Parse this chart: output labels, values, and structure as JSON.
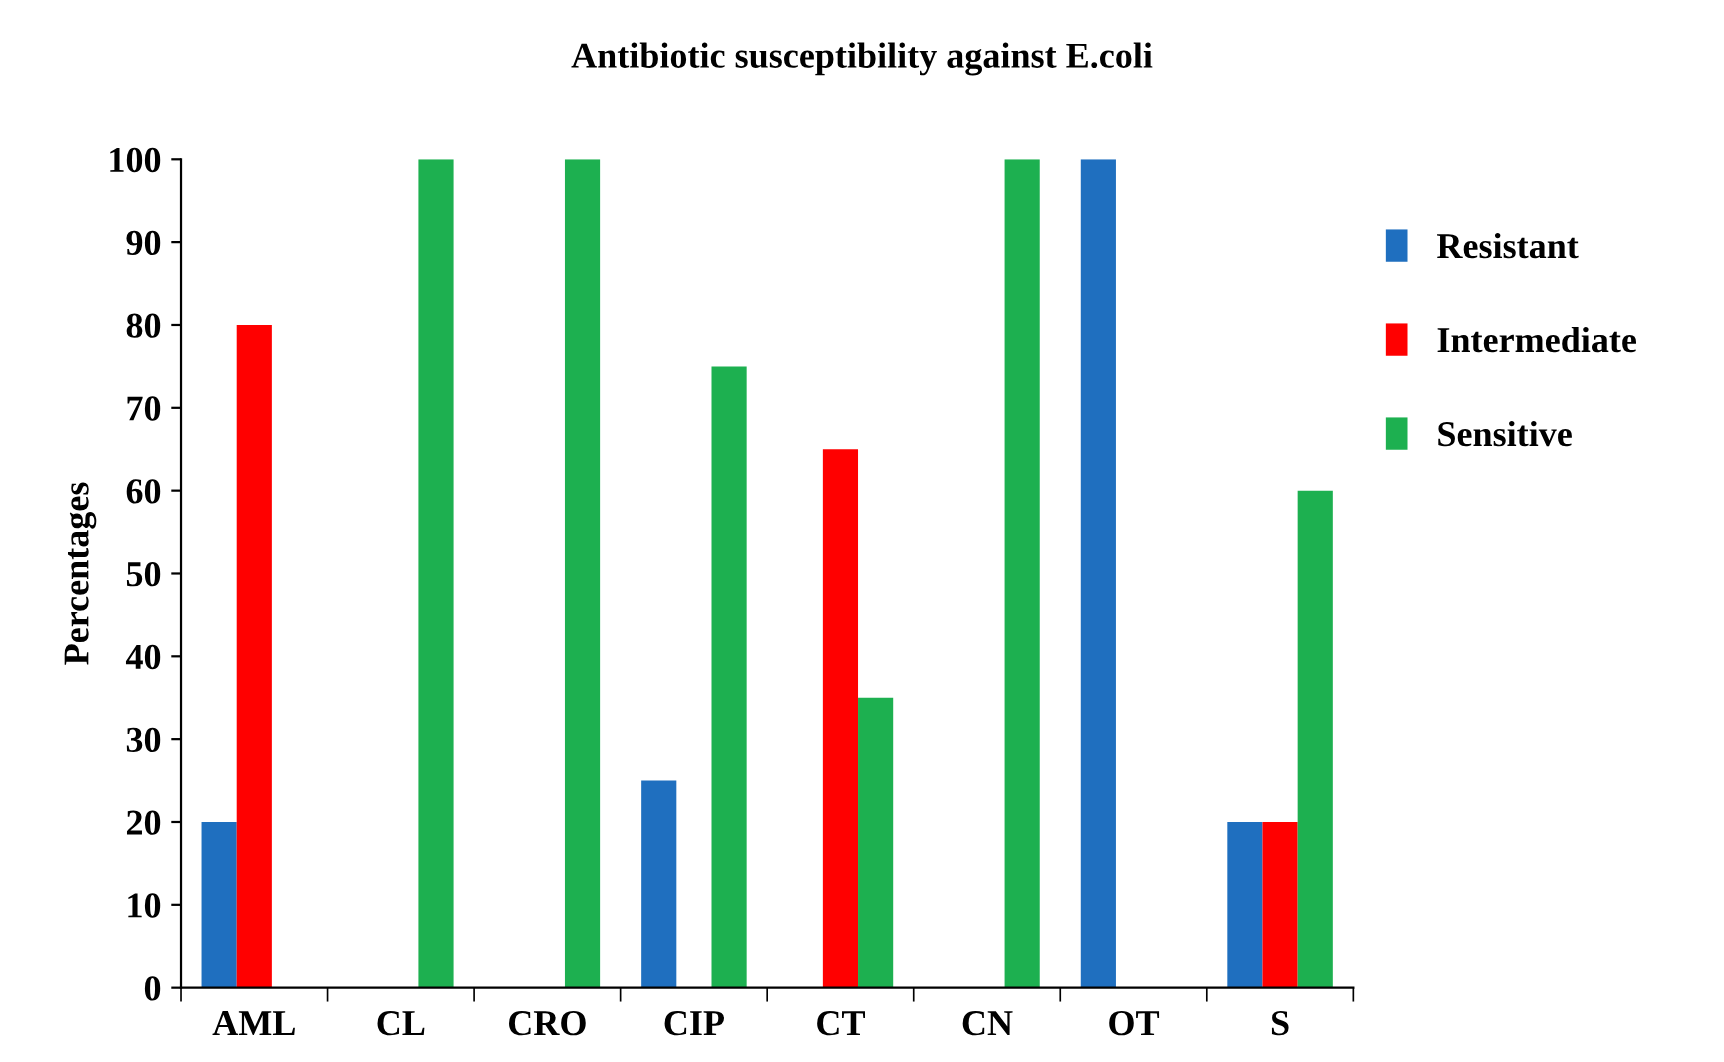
{
  "chart_data": {
    "type": "bar",
    "title": "Antibiotic susceptibility against E.coli",
    "ylabel": "Percentages",
    "categories": [
      "AML",
      "CL",
      "CRO",
      "CIP",
      "CT",
      "CN",
      "OT",
      "S"
    ],
    "series": [
      {
        "name": "Resistant",
        "color": "#1f6fbf",
        "values": [
          20,
          0,
          0,
          25,
          0,
          0,
          100,
          20
        ]
      },
      {
        "name": "Intermediate",
        "color": "#ff0000",
        "values": [
          80,
          0,
          0,
          0,
          65,
          0,
          0,
          20
        ]
      },
      {
        "name": "Sensitive",
        "color": "#1db050",
        "values": [
          0,
          100,
          100,
          75,
          35,
          100,
          0,
          60
        ]
      }
    ],
    "ylim": [
      0,
      100
    ],
    "yticks": [
      0,
      10,
      20,
      30,
      40,
      50,
      60,
      70,
      80,
      90,
      100
    ],
    "grid": false,
    "legend": "right"
  }
}
